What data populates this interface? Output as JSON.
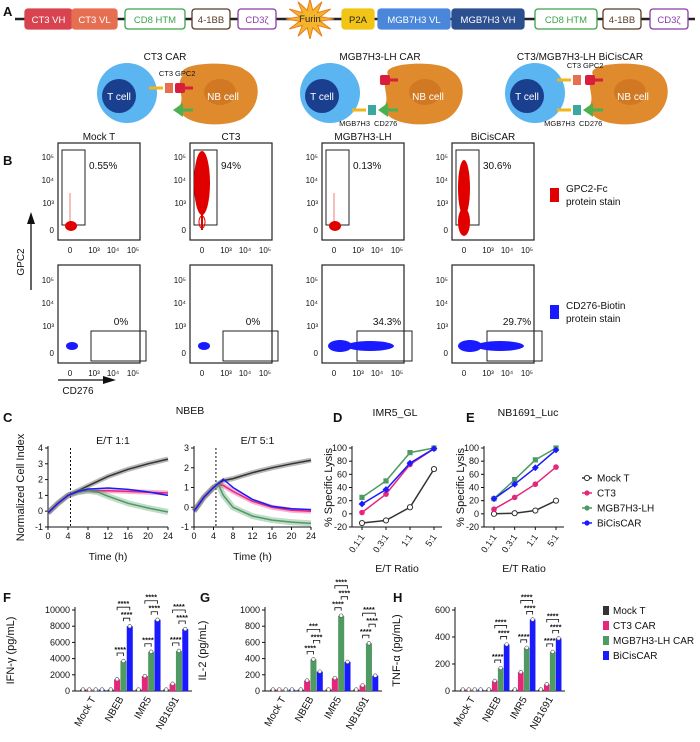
{
  "panel_letters": [
    "A",
    "B",
    "C",
    "D",
    "E",
    "F",
    "G",
    "H"
  ],
  "colors": {
    "mock": "#333333",
    "ct3": "#e5267b",
    "mgb": "#4e9a62",
    "bicis": "#1a1aff",
    "tcell": "#5bb5f0",
    "tnucleus": "#1b3f8f",
    "nbcell": "#e08a2e",
    "nbnucleus": "#c66e1a",
    "gpc2_stain": "#e00000",
    "cd276_stain": "#1a1aff"
  },
  "panelA": {
    "construct": [
      {
        "label": "CT3 VH",
        "fill": "#d9434f",
        "stroke": "#d9434f",
        "text": "#ffffff"
      },
      {
        "label": "CT3 VL",
        "fill": "#e76f51",
        "stroke": "#e76f51",
        "text": "#ffffff"
      },
      {
        "label": "CD8 HTM",
        "fill": "#ffffff",
        "stroke": "#3aa24a",
        "text": "#3aa24a"
      },
      {
        "label": "4-1BB",
        "fill": "#ffffff",
        "stroke": "#5a3a22",
        "text": "#5a3a22"
      },
      {
        "label": "CD3ζ",
        "fill": "#ffffff",
        "stroke": "#8a3ca8",
        "text": "#8a3ca8"
      },
      {
        "label": "Furin",
        "fill": "#f5b52a",
        "stroke": "#e67e22",
        "text": "#222222",
        "shape": "star"
      },
      {
        "label": "P2A",
        "fill": "#f2c416",
        "stroke": "#f2c416",
        "text": "#222222"
      },
      {
        "label": "MGB7H3 VL",
        "fill": "#4a86d9",
        "stroke": "#4a86d9",
        "text": "#ffffff"
      },
      {
        "label": "MGB7H3 VH",
        "fill": "#2c4f8f",
        "stroke": "#2c4f8f",
        "text": "#ffffff"
      },
      {
        "label": "CD8 HTM",
        "fill": "#ffffff",
        "stroke": "#3aa24a",
        "text": "#3aa24a"
      },
      {
        "label": "4-1BB",
        "fill": "#ffffff",
        "stroke": "#5a3a22",
        "text": "#5a3a22"
      },
      {
        "label": "CD3ζ",
        "fill": "#ffffff",
        "stroke": "#8a3ca8",
        "text": "#8a3ca8"
      }
    ],
    "cartoons": [
      {
        "title": "CT3 CAR",
        "tcell": "T cell",
        "nbcell": "NB cell",
        "top_labels": [
          "CT3",
          "GPC2"
        ],
        "bottom_labels": []
      },
      {
        "title": "MGB7H3-LH CAR",
        "tcell": "T cell",
        "nbcell": "NB cell",
        "top_labels": [],
        "bottom_labels": [
          "MGB7H3",
          "CD276"
        ]
      },
      {
        "title": "CT3/MGB7H3-LH BiCisCAR",
        "tcell": "T cell",
        "nbcell": "NB cell",
        "top_labels": [
          "CT3",
          "GPC2"
        ],
        "bottom_labels": [
          "MGB7H3",
          "CD276"
        ]
      }
    ]
  },
  "panelB": {
    "columns": [
      "Mock T",
      "CT3",
      "MGB7H3-LH",
      "BiCisCAR"
    ],
    "top_percents": [
      "0.55%",
      "94%",
      "0.13%",
      "30.6%"
    ],
    "bottom_percents": [
      "0%",
      "0%",
      "34.3%",
      "29.7%"
    ],
    "tick_labels": [
      "0",
      "10³",
      "10⁴",
      "10⁵"
    ],
    "y_axis_label": "GPC2",
    "x_axis_label": "CD276",
    "legend": [
      {
        "line1": "GPC2-Fc",
        "line2": "protein stain",
        "color": "#e00000"
      },
      {
        "line1": "CD276-Biotin",
        "line2": "protein stain",
        "color": "#1a1aff"
      }
    ]
  },
  "chart_data": [
    {
      "panel": "C",
      "type": "line",
      "title": "NBEB",
      "subtitle": "E/T 1:1",
      "xlabel": "Time (h)",
      "ylabel": "Normalized Cell Index",
      "xlim": [
        0,
        24
      ],
      "ylim": [
        -1,
        4
      ],
      "xticks": [
        "0",
        "4",
        "8",
        "12",
        "16",
        "20",
        "24"
      ],
      "yticks": [
        "-1",
        "0",
        "1",
        "2",
        "3",
        "4"
      ],
      "x_marker": 4.5,
      "series": [
        {
          "key": "mock",
          "x": [
            0,
            2,
            4,
            6,
            8,
            12,
            16,
            20,
            24
          ],
          "y": [
            -0.1,
            0.5,
            1.0,
            1.3,
            1.6,
            2.2,
            2.65,
            3.0,
            3.3
          ]
        },
        {
          "key": "ct3",
          "x": [
            0,
            2,
            4,
            6,
            8,
            12,
            16,
            20,
            24
          ],
          "y": [
            -0.1,
            0.5,
            1.0,
            1.2,
            1.3,
            1.3,
            1.25,
            1.2,
            1.15
          ]
        },
        {
          "key": "mgb",
          "x": [
            0,
            2,
            4,
            6,
            8,
            10,
            12,
            16,
            20,
            24
          ],
          "y": [
            -0.1,
            0.5,
            1.0,
            1.2,
            1.3,
            1.2,
            0.95,
            0.5,
            0.2,
            -0.05
          ]
        },
        {
          "key": "bicis",
          "x": [
            0,
            2,
            4,
            6,
            8,
            12,
            16,
            20,
            24
          ],
          "y": [
            -0.1,
            0.5,
            1.0,
            1.25,
            1.4,
            1.47,
            1.38,
            1.22,
            1.0
          ]
        }
      ]
    },
    {
      "panel": "C",
      "type": "line",
      "subtitle": "E/T 5:1",
      "xlabel": "Time (h)",
      "xlim": [
        0,
        24
      ],
      "ylim": [
        -1,
        3
      ],
      "xticks": [
        "0",
        "4",
        "8",
        "12",
        "16",
        "20",
        "24"
      ],
      "yticks": [
        "-1",
        "0",
        "1",
        "2",
        "3"
      ],
      "x_marker": 4.5,
      "series": [
        {
          "key": "mock",
          "x": [
            0,
            2,
            4,
            6,
            8,
            12,
            16,
            20,
            24
          ],
          "y": [
            -0.2,
            0.5,
            1.0,
            1.35,
            1.45,
            1.75,
            2.0,
            2.2,
            2.38
          ]
        },
        {
          "key": "ct3",
          "x": [
            0,
            2,
            4,
            5,
            6,
            8,
            12,
            16,
            20,
            24
          ],
          "y": [
            -0.2,
            0.5,
            1.0,
            1.15,
            1.1,
            0.8,
            0.3,
            0.0,
            -0.15,
            -0.2
          ]
        },
        {
          "key": "mgb",
          "x": [
            0,
            2,
            4,
            5,
            6,
            8,
            12,
            16,
            20,
            24
          ],
          "y": [
            -0.2,
            0.5,
            1.0,
            1.15,
            0.6,
            0.0,
            -0.45,
            -0.65,
            -0.75,
            -0.82
          ]
        },
        {
          "key": "bicis",
          "x": [
            0,
            2,
            4,
            6,
            8,
            12,
            16,
            20,
            24
          ],
          "y": [
            -0.2,
            0.5,
            1.0,
            1.42,
            1.0,
            0.4,
            0.05,
            -0.08,
            -0.12
          ]
        }
      ]
    },
    {
      "panel": "D",
      "type": "line",
      "title": "IMR5_GL",
      "xlabel": "E/T Ratio",
      "ylabel": "% Specific Lysis",
      "categories": [
        "0.1:1",
        "0.3:1",
        "1:1",
        "5:1"
      ],
      "ylim": [
        -20,
        100
      ],
      "yticks": [
        "-20",
        "0",
        "20",
        "40",
        "60",
        "80",
        "100"
      ],
      "series": [
        {
          "key": "mock",
          "values": [
            -14,
            -10,
            10,
            68
          ]
        },
        {
          "key": "ct3",
          "values": [
            2,
            30,
            75,
            99
          ]
        },
        {
          "key": "mgb",
          "values": [
            25,
            50,
            93,
            100
          ]
        },
        {
          "key": "bicis",
          "values": [
            15,
            37,
            77,
            99
          ]
        }
      ]
    },
    {
      "panel": "E",
      "type": "line",
      "title": "NB1691_Luc",
      "xlabel": "E/T Ratio",
      "ylabel": "% Specific Lysis",
      "categories": [
        "0.1:1",
        "0.3:1",
        "1:1",
        "5:1"
      ],
      "ylim": [
        -20,
        100
      ],
      "yticks": [
        "-20",
        "0",
        "20",
        "40",
        "60",
        "80",
        "100"
      ],
      "legend": [
        {
          "key": "mock",
          "name": "Mock T"
        },
        {
          "key": "ct3",
          "name": "CT3"
        },
        {
          "key": "mgb",
          "name": "MGB7H3-LH"
        },
        {
          "key": "bicis",
          "name": "BiCisCAR"
        }
      ],
      "series": [
        {
          "key": "mock",
          "values": [
            0,
            1,
            5,
            20
          ]
        },
        {
          "key": "ct3",
          "values": [
            7,
            25,
            45,
            71
          ]
        },
        {
          "key": "mgb",
          "values": [
            23,
            52,
            82,
            100
          ]
        },
        {
          "key": "bicis",
          "values": [
            23,
            45,
            70,
            97
          ]
        }
      ]
    },
    {
      "panel": "F",
      "type": "bar",
      "ylabel": "IFN-γ (pg/mL)",
      "ylim": [
        0,
        10000
      ],
      "yticks": [
        "0",
        "2000",
        "4000",
        "6000",
        "8000",
        "10000"
      ],
      "categories": [
        "Mock T",
        "NBEB",
        "IMR5",
        "NB1691"
      ],
      "series_keys": [
        "mock",
        "ct3",
        "mgb",
        "bicis"
      ],
      "values": [
        [
          50,
          80,
          50,
          150
        ],
        [
          0,
          1450,
          3700,
          8000
        ],
        [
          50,
          1850,
          4850,
          8800
        ],
        [
          30,
          900,
          4950,
          7650
        ]
      ],
      "significance": [
        [],
        [
          [
            1,
            2,
            "****"
          ],
          [
            2,
            3,
            "****"
          ],
          [
            1,
            3,
            "****"
          ]
        ],
        [
          [
            1,
            2,
            "****"
          ],
          [
            2,
            3,
            "****"
          ],
          [
            1,
            3,
            "****"
          ]
        ],
        [
          [
            1,
            2,
            "****"
          ],
          [
            2,
            3,
            "****"
          ],
          [
            1,
            3,
            "****"
          ]
        ]
      ]
    },
    {
      "panel": "G",
      "type": "bar",
      "ylabel": "IL-2 (pg/mL)",
      "ylim": [
        0,
        1000
      ],
      "yticks": [
        "0",
        "200",
        "400",
        "600",
        "800",
        "1000"
      ],
      "categories": [
        "Mock T",
        "NBEB",
        "IMR5",
        "NB1691"
      ],
      "series_keys": [
        "mock",
        "ct3",
        "mgb",
        "bicis"
      ],
      "values": [
        [
          0,
          0,
          0,
          0
        ],
        [
          0,
          130,
          390,
          240
        ],
        [
          0,
          160,
          930,
          360
        ],
        [
          0,
          70,
          590,
          190
        ]
      ],
      "significance": [
        [],
        [
          [
            1,
            2,
            "****"
          ],
          [
            2,
            3,
            "****"
          ],
          [
            1,
            3,
            "***"
          ]
        ],
        [
          [
            1,
            2,
            "****"
          ],
          [
            2,
            3,
            "****"
          ],
          [
            1,
            3,
            "****"
          ]
        ],
        [
          [
            1,
            2,
            "****"
          ],
          [
            2,
            3,
            "****"
          ],
          [
            1,
            3,
            "****"
          ]
        ]
      ]
    },
    {
      "panel": "H",
      "type": "bar",
      "ylabel": "TNF-α (pg/mL)",
      "ylim": [
        0,
        600
      ],
      "yticks": [
        "0",
        "200",
        "400",
        "600"
      ],
      "categories": [
        "Mock T",
        "NBEB",
        "IMR5",
        "NB1691"
      ],
      "series_keys": [
        "mock",
        "ct3",
        "mgb",
        "bicis"
      ],
      "values": [
        [
          0,
          0,
          0,
          10
        ],
        [
          0,
          75,
          170,
          345
        ],
        [
          5,
          140,
          320,
          530
        ],
        [
          0,
          50,
          290,
          390
        ]
      ],
      "legend": [
        {
          "key": "mock",
          "name": "Mock T"
        },
        {
          "key": "ct3",
          "name": "CT3 CAR"
        },
        {
          "key": "mgb",
          "name": "MGB7H3-LH CAR"
        },
        {
          "key": "bicis",
          "name": "BiCisCAR"
        }
      ],
      "significance": [
        [],
        [
          [
            1,
            2,
            "****"
          ],
          [
            2,
            3,
            "****"
          ],
          [
            1,
            3,
            "****"
          ]
        ],
        [
          [
            1,
            2,
            "****"
          ],
          [
            2,
            3,
            "****"
          ],
          [
            1,
            3,
            "****"
          ]
        ],
        [
          [
            1,
            2,
            "****"
          ],
          [
            2,
            3,
            "****"
          ],
          [
            1,
            3,
            "****"
          ]
        ]
      ]
    }
  ]
}
